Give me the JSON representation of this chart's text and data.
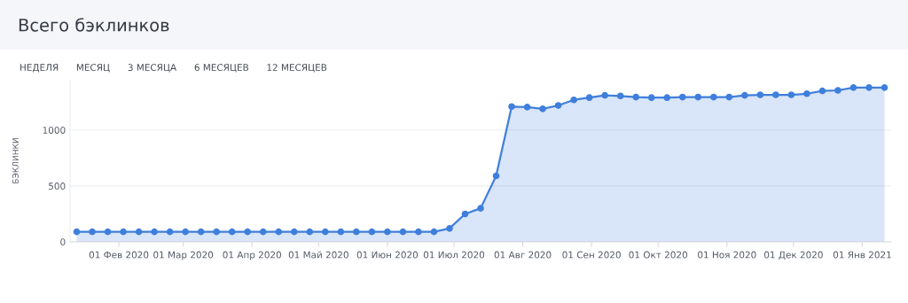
{
  "chart_data": {
    "type": "area",
    "title": "Всего бэклинков",
    "ylabel": "БЭКЛИНКИ",
    "annotations": [
      "НЕДЕЛЯ",
      "МЕСЯЦ",
      "3 МЕСЯЦА",
      "6 МЕСЯЦЕВ",
      "12 МЕСЯЦЕВ"
    ],
    "x": [
      "2020-01-13",
      "2020-01-20",
      "2020-01-27",
      "2020-02-03",
      "2020-02-10",
      "2020-02-17",
      "2020-02-24",
      "2020-03-02",
      "2020-03-09",
      "2020-03-16",
      "2020-03-23",
      "2020-03-30",
      "2020-04-06",
      "2020-04-13",
      "2020-04-20",
      "2020-04-27",
      "2020-05-04",
      "2020-05-11",
      "2020-05-18",
      "2020-05-25",
      "2020-06-01",
      "2020-06-08",
      "2020-06-15",
      "2020-06-22",
      "2020-06-29",
      "2020-07-06",
      "2020-07-13",
      "2020-07-20",
      "2020-07-27",
      "2020-08-03",
      "2020-08-10",
      "2020-08-17",
      "2020-08-24",
      "2020-08-31",
      "2020-09-07",
      "2020-09-14",
      "2020-09-21",
      "2020-09-28",
      "2020-10-05",
      "2020-10-12",
      "2020-10-19",
      "2020-10-26",
      "2020-11-02",
      "2020-11-09",
      "2020-11-16",
      "2020-11-23",
      "2020-11-30",
      "2020-12-07",
      "2020-12-14",
      "2020-12-21",
      "2020-12-28",
      "2021-01-04",
      "2021-01-11"
    ],
    "series": [
      {
        "color": "#3f7fdc",
        "values": [
          90,
          90,
          90,
          90,
          90,
          90,
          90,
          90,
          90,
          90,
          90,
          90,
          90,
          90,
          90,
          90,
          90,
          90,
          90,
          90,
          90,
          90,
          90,
          90,
          120,
          250,
          300,
          590,
          1210,
          1205,
          1190,
          1220,
          1270,
          1290,
          1310,
          1305,
          1295,
          1290,
          1290,
          1295,
          1295,
          1295,
          1295,
          1310,
          1315,
          1315,
          1315,
          1325,
          1350,
          1355,
          1380,
          1380,
          1380
        ]
      }
    ],
    "xlim": [
      "2020-01-10",
      "2021-01-14"
    ],
    "xticks": [
      {
        "value": "2020-02-01",
        "label": "01 Фев 2020"
      },
      {
        "value": "2020-03-01",
        "label": "01 Мар 2020"
      },
      {
        "value": "2020-04-01",
        "label": "01 Апр 2020"
      },
      {
        "value": "2020-05-01",
        "label": "01 Май 2020"
      },
      {
        "value": "2020-06-01",
        "label": "01 Июн 2020"
      },
      {
        "value": "2020-07-01",
        "label": "01 Июл 2020"
      },
      {
        "value": "2020-08-01",
        "label": "01 Авг 2020"
      },
      {
        "value": "2020-09-01",
        "label": "01 Сен 2020"
      },
      {
        "value": "2020-10-01",
        "label": "01 Окт 2020"
      },
      {
        "value": "2020-11-01",
        "label": "01 Ноя 2020"
      },
      {
        "value": "2020-12-01",
        "label": "01 Дек 2020"
      },
      {
        "value": "2021-01-01",
        "label": "01 Янв 2021"
      }
    ],
    "ylim": [
      0,
      1450
    ],
    "yticks": [
      0,
      500,
      1000
    ],
    "grid": "y",
    "marker": "circle",
    "line_style": "solid"
  }
}
